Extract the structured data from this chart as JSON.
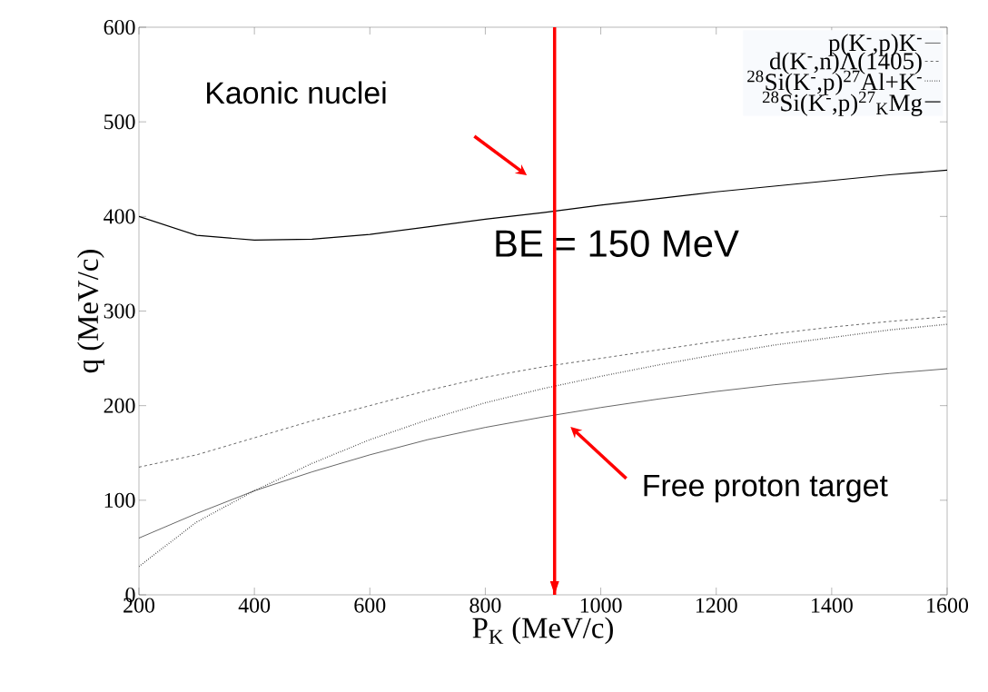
{
  "chart_data": {
    "type": "line",
    "xlabel": "P$_{K}$ (MeV/c)",
    "ylabel": "q (MeV/c)",
    "x": [
      200,
      300,
      400,
      500,
      600,
      700,
      800,
      900,
      1000,
      1100,
      1200,
      1300,
      1400,
      1500,
      1600
    ],
    "series": [
      {
        "name": "p(K$^{-}$,p)K$^{-}$",
        "color": "#000000",
        "line_style": "solid",
        "values": [
          60,
          86,
          110,
          130,
          148,
          164,
          177,
          188,
          198,
          207,
          215,
          222,
          228,
          234,
          239
        ]
      },
      {
        "name": "d(K$^{-}$,n)Λ(1405)",
        "color": "#000000",
        "line_style": "dashed",
        "values": [
          135,
          148,
          166,
          184,
          200,
          216,
          230,
          241,
          250,
          259,
          268,
          276,
          283,
          289,
          294
        ]
      },
      {
        "name": "$^{28}$Si(K$^{-}$,p)$^{27}$Al+K$^{-}$",
        "color": "#000000",
        "line_style": "dotted",
        "values": [
          30,
          77,
          110,
          139,
          164,
          185,
          203,
          218,
          231,
          243,
          254,
          264,
          272,
          280,
          286
        ]
      },
      {
        "name": "$^{28}$Si(K$^{-}$,p)$^{27}$$_{K}$Mg",
        "color": "#000000",
        "line_style": "solid",
        "values": [
          400,
          380,
          375,
          376,
          381,
          389,
          397,
          404,
          412,
          419,
          426,
          432,
          438,
          444,
          449
        ]
      }
    ],
    "xlim": [
      200,
      1600
    ],
    "ylim": [
      0,
      600
    ],
    "xticks": [
      200,
      400,
      600,
      800,
      1000,
      1200,
      1400,
      1600
    ],
    "yticks": [
      0,
      100,
      200,
      300,
      400,
      500,
      600
    ],
    "ref_lines": [
      {
        "axis": "x",
        "value": 920,
        "color": "#ff0000"
      }
    ],
    "annotations": [
      "Kaonic nuclei",
      "BE = 150 MeV",
      "Free proton target"
    ],
    "grid": false,
    "legend": "top right",
    "marker": "none"
  }
}
